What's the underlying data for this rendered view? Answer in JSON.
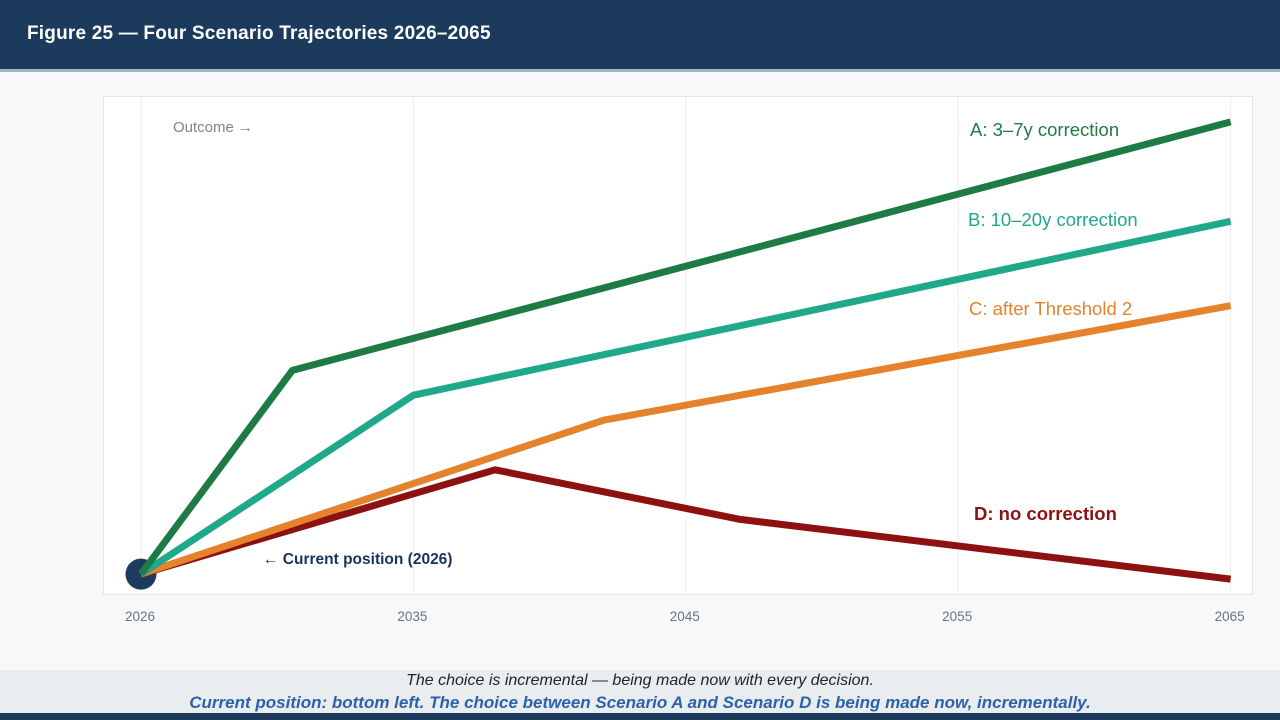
{
  "header": {
    "title": "Figure 25 — Four Scenario Trajectories 2026–2065",
    "bg_color": "#1b3a5c"
  },
  "chart_data": {
    "type": "line",
    "title": "Figure 25 — Four Scenario Trajectories 2026–2065",
    "xlabel": "",
    "ylabel": "Outcome",
    "x_ticks": [
      2026,
      2035,
      2045,
      2055,
      2065
    ],
    "x_tick_labels": [
      "2026",
      "2035",
      "2045",
      "2055",
      "2065"
    ],
    "ylim": [
      0,
      100
    ],
    "grid": "vertical-only",
    "gridline_color": "#ededef",
    "legend_position": "right-inline",
    "series": [
      {
        "name": "A: 3–7y correction",
        "color": "#1e7b45",
        "points": [
          [
            2026,
            4
          ],
          [
            2031,
            45
          ],
          [
            2065,
            95
          ]
        ]
      },
      {
        "name": "B: 10–20y correction",
        "color": "#1fa88a",
        "points": [
          [
            2026,
            4
          ],
          [
            2035,
            40
          ],
          [
            2065,
            75
          ]
        ]
      },
      {
        "name": "C: after Threshold 2",
        "color": "#e5822c",
        "points": [
          [
            2026,
            4
          ],
          [
            2042,
            35
          ],
          [
            2065,
            58
          ]
        ]
      },
      {
        "name": "D: no correction",
        "color": "#8e1111",
        "points": [
          [
            2026,
            4
          ],
          [
            2038,
            25
          ],
          [
            2047,
            15
          ],
          [
            2065,
            3
          ]
        ]
      }
    ],
    "marker": {
      "label": "Current position",
      "year": 2026,
      "value": 4,
      "color": "#1e3a5f"
    },
    "annotations": [
      {
        "text": "Outcome →"
      },
      {
        "text": "← Current position (2026)"
      }
    ]
  },
  "footer": {
    "line1": "The choice is incremental — being made now with every decision.",
    "line2": "Current position: bottom left. The choice between Scenario A and Scenario D is being made now, incrementally."
  }
}
